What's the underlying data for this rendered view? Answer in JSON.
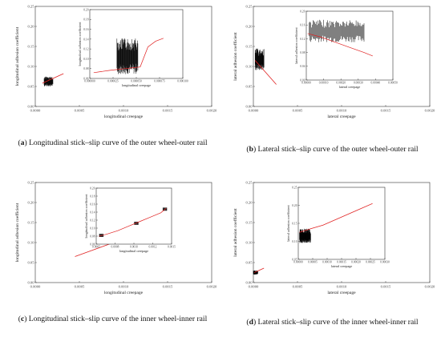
{
  "chart_data": [
    {
      "type": "line",
      "caption_letter": "a",
      "caption": "Longitudinal stick–slip curve of the outer wheel-outer rail",
      "xlabel": "longitudinal creepage",
      "ylabel": "longitudinal adhesion coefficient",
      "xlim": [
        0,
        0.002
      ],
      "ylim": [
        0,
        0.25
      ],
      "xticks": [
        "0.0000",
        "0.0005",
        "0.0010",
        "0.0015",
        "0.0020"
      ],
      "yticks": [
        "0.00",
        "0.05",
        "0.10",
        "0.15",
        "0.20",
        "0.25"
      ],
      "series": [
        {
          "color": "#e02020",
          "x": [
            8e-05,
            0.00012,
            0.00016,
            0.0002,
            0.00024,
            0.00028,
            0.00032
          ],
          "y": [
            0.058,
            0.062,
            0.066,
            0.07,
            0.074,
            0.078,
            0.082
          ]
        }
      ],
      "noise": {
        "x_from": 0.0001,
        "x_to": 0.0002,
        "y_low": 0.05,
        "y_high": 0.075
      },
      "inset": {
        "xlabel": "longitudinal creepage",
        "ylabel": "longitudinal adhesion coefficient",
        "xlim": [
          0,
          0.00012
        ],
        "ylim": [
          0.06,
          0.3
        ],
        "xticks": [
          "0.000000",
          "0.000025",
          "0.000050",
          "0.000075",
          "0.000100"
        ],
        "yticks": [
          "0.06",
          "0.08",
          "0.10",
          "0.12",
          "0.14",
          "0.16",
          "0.18",
          "0.20"
        ],
        "x": [
          5e-06,
          1.5e-05,
          2.5e-05,
          3.5e-05,
          4.5e-05,
          5.5e-05,
          6.5e-05,
          7.5e-05,
          8.5e-05,
          9.5e-05
        ],
        "y": [
          0.08,
          0.084,
          0.088,
          0.091,
          0.094,
          0.097,
          0.1,
          0.17,
          0.19,
          0.2
        ],
        "noise": {
          "x_from": 3.5e-05,
          "x_to": 6.2e-05,
          "y_low": 0.075,
          "y_high": 0.2
        }
      }
    },
    {
      "type": "line",
      "caption_letter": "b",
      "caption": "Lateral stick–slip curve of the outer wheel-outer rail",
      "xlabel": "lateral creepage",
      "ylabel": "lateral adhesion coefficient",
      "xlim": [
        0,
        0.002
      ],
      "ylim": [
        0,
        0.25
      ],
      "xticks": [
        "0.0000",
        "0.0005",
        "0.0010",
        "0.0015",
        "0.0020"
      ],
      "yticks": [
        "0.00",
        "0.05",
        "0.10",
        "0.15",
        "0.20",
        "0.25"
      ],
      "series": [
        {
          "color": "#e02020",
          "x": [
            2e-05,
            8e-05,
            0.00014,
            0.0002,
            0.00026
          ],
          "y": [
            0.115,
            0.1,
            0.085,
            0.07,
            0.055
          ]
        }
      ],
      "noise": {
        "x_from": 2e-05,
        "x_to": 0.00012,
        "y_low": 0.09,
        "y_high": 0.145
      },
      "inset": {
        "xlabel": "lateral creepage",
        "ylabel": "lateral adhesion coefficient",
        "xlim": [
          0,
          0.0006
        ],
        "ylim": [
          0,
          0.2
        ],
        "xticks": [
          "0.00000",
          "0.00010",
          "0.00020",
          "0.00030",
          "0.00040",
          "0.00050"
        ],
        "yticks": [
          "0.00",
          "0.04",
          "0.08",
          "0.12",
          "0.16",
          "0.20"
        ],
        "x": [
          1e-05,
          0.0001,
          0.0002,
          0.0003,
          0.0004,
          0.00046
        ],
        "y": [
          0.135,
          0.125,
          0.11,
          0.095,
          0.08,
          0.07
        ],
        "noise": {
          "x_from": 2e-05,
          "x_to": 0.0004,
          "y_low": 0.11,
          "y_high": 0.175
        }
      }
    },
    {
      "type": "line",
      "caption_letter": "c",
      "caption": "Longitudinal stick–slip curve of the inner wheel-inner rail",
      "xlabel": "longitudinal creepage",
      "ylabel": "longitudinal adhesion coefficient",
      "xlim": [
        0,
        0.002
      ],
      "ylim": [
        0,
        0.25
      ],
      "xticks": [
        "0.0000",
        "0.0005",
        "0.0010",
        "0.0015",
        "0.0020"
      ],
      "yticks": [
        "0.00",
        "0.05",
        "0.10",
        "0.15",
        "0.20",
        "0.25"
      ],
      "series": [
        {
          "color": "#e02020",
          "x": [
            0.00045,
            0.0007,
            0.00095
          ],
          "y": [
            0.065,
            0.085,
            0.105
          ]
        }
      ],
      "inset": {
        "xlabel": "longitudinal creepage",
        "ylabel": "longitudinal adhesion coefficient",
        "xlim": [
          0.0004,
          0.0018
        ],
        "ylim": [
          0.05,
          0.3
        ],
        "xticks": [
          "0.0005",
          "0.0008",
          "0.0010",
          "0.0012",
          "0.0015"
        ],
        "yticks": [
          "0.06",
          "0.08",
          "0.10",
          "0.12",
          "0.14",
          "0.16",
          "0.18",
          "0.20"
        ],
        "x": [
          0.00045,
          0.0006,
          0.0008,
          0.001,
          0.0012,
          0.0014,
          0.0016,
          0.0017
        ],
        "y": [
          0.085,
          0.095,
          0.11,
          0.13,
          0.15,
          0.17,
          0.19,
          0.21
        ],
        "noise_clusters": [
          [
            0.0005,
            0.088
          ],
          [
            0.00115,
            0.142
          ],
          [
            0.00168,
            0.205
          ]
        ]
      }
    },
    {
      "type": "line",
      "caption_letter": "d",
      "caption": "Lateral stick–slip curve of the inner wheel-inner rail",
      "xlabel": "lateral creepage",
      "ylabel": "lateral adhesion coefficient",
      "xlim": [
        0,
        0.002
      ],
      "ylim": [
        0,
        0.25
      ],
      "xticks": [
        "0.0000",
        "0.0005",
        "0.0010",
        "0.0015",
        "0.0020"
      ],
      "yticks": [
        "0.00",
        "0.05",
        "0.10",
        "0.15",
        "0.20",
        "0.25"
      ],
      "series": [
        {
          "color": "#e02020",
          "x": [
            1e-05,
            6e-05,
            0.00012
          ],
          "y": [
            0.025,
            0.03,
            0.036
          ]
        }
      ],
      "noise": {
        "x_from": 0.0,
        "x_to": 5e-05,
        "y_low": 0.02,
        "y_high": 0.03
      },
      "inset": {
        "xlabel": "lateral creepage",
        "ylabel": "lateral adhesion coefficient",
        "xlim": [
          0,
          0.00035
        ],
        "ylim": [
          0.05,
          0.25
        ],
        "xticks": [
          "0.00000",
          "0.00005",
          "0.00010",
          "0.00015",
          "0.00020",
          "0.00025",
          "0.00030"
        ],
        "yticks": [
          "0.05",
          "0.10",
          "0.15",
          "0.20",
          "0.25"
        ],
        "x": [
          5e-06,
          5e-05,
          0.0001,
          0.00015,
          0.0002,
          0.00025,
          0.0003
        ],
        "y": [
          0.125,
          0.135,
          0.145,
          0.16,
          0.175,
          0.19,
          0.205
        ],
        "noise": {
          "x_from": 5e-06,
          "x_to": 5e-05,
          "y_low": 0.095,
          "y_high": 0.135
        }
      }
    }
  ]
}
